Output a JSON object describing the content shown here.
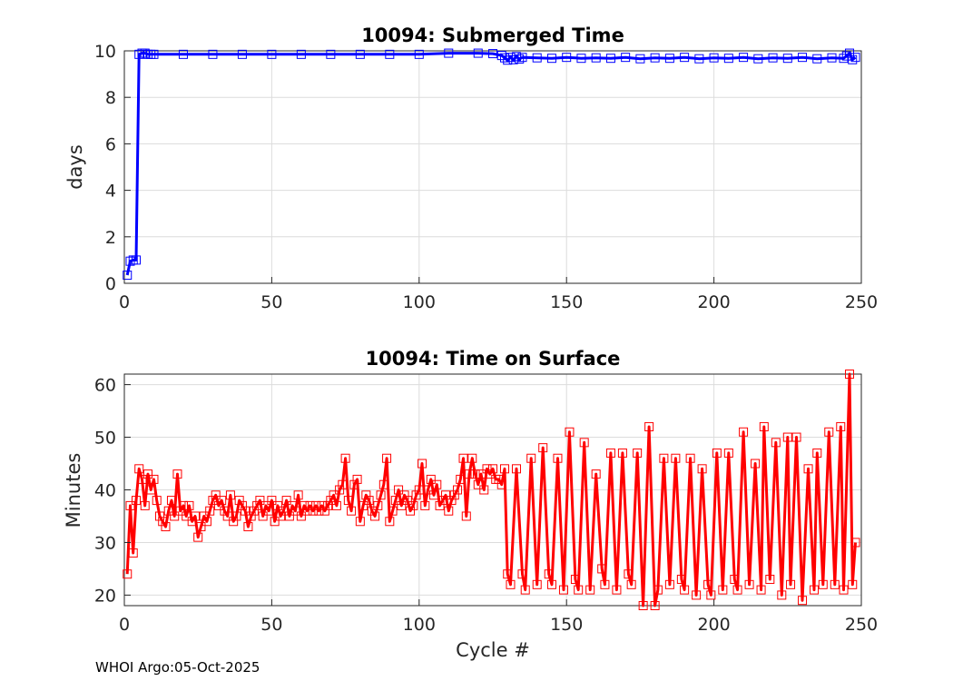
{
  "footer": "WHOI Argo:05-Oct-2025",
  "chart_data": [
    {
      "type": "line",
      "title": "10094: Submerged Time",
      "xlabel": "",
      "ylabel": "days",
      "xlim": [
        0,
        250
      ],
      "ylim": [
        0,
        10
      ],
      "xticks": [
        0,
        50,
        100,
        150,
        200,
        250
      ],
      "yticks": [
        0,
        2,
        4,
        6,
        8,
        10
      ],
      "grid": true,
      "color": "#0000ff",
      "marker": "square",
      "series": [
        {
          "name": "Submerged Time",
          "x": [
            1,
            2,
            3,
            4,
            5,
            6,
            7,
            8,
            9,
            10,
            20,
            30,
            40,
            50,
            60,
            70,
            80,
            90,
            100,
            110,
            120,
            125,
            128,
            129,
            130,
            131,
            132,
            133,
            134,
            135,
            140,
            145,
            150,
            155,
            160,
            165,
            170,
            175,
            180,
            185,
            190,
            195,
            200,
            205,
            210,
            215,
            220,
            225,
            230,
            235,
            240,
            244,
            245,
            246,
            247,
            248
          ],
          "y": [
            0.35,
            0.95,
            1.0,
            1.0,
            9.85,
            9.9,
            9.9,
            9.85,
            9.85,
            9.85,
            9.85,
            9.85,
            9.85,
            9.85,
            9.85,
            9.85,
            9.85,
            9.85,
            9.85,
            9.9,
            9.9,
            9.88,
            9.8,
            9.7,
            9.6,
            9.72,
            9.62,
            9.75,
            9.65,
            9.72,
            9.7,
            9.68,
            9.72,
            9.68,
            9.7,
            9.68,
            9.72,
            9.66,
            9.7,
            9.68,
            9.72,
            9.66,
            9.7,
            9.68,
            9.72,
            9.66,
            9.7,
            9.68,
            9.72,
            9.66,
            9.7,
            9.68,
            9.78,
            9.9,
            9.62,
            9.72
          ]
        }
      ]
    },
    {
      "type": "line",
      "title": "10094: Time on Surface",
      "xlabel": "Cycle #",
      "ylabel": "Minutes",
      "xlim": [
        0,
        250
      ],
      "ylim": [
        18,
        62
      ],
      "xticks": [
        0,
        50,
        100,
        150,
        200,
        250
      ],
      "yticks": [
        20,
        30,
        40,
        50,
        60
      ],
      "grid": true,
      "color": "#ff0000",
      "marker": "square",
      "series": [
        {
          "name": "Time on Surface",
          "x": [
            1,
            2,
            3,
            4,
            5,
            6,
            7,
            8,
            9,
            10,
            11,
            12,
            13,
            14,
            15,
            16,
            17,
            18,
            19,
            20,
            21,
            22,
            23,
            24,
            25,
            26,
            27,
            28,
            29,
            30,
            31,
            32,
            33,
            34,
            35,
            36,
            37,
            38,
            39,
            40,
            41,
            42,
            43,
            44,
            45,
            46,
            47,
            48,
            49,
            50,
            51,
            52,
            53,
            54,
            55,
            56,
            57,
            58,
            59,
            60,
            61,
            62,
            63,
            64,
            65,
            66,
            67,
            68,
            69,
            70,
            71,
            72,
            73,
            74,
            75,
            76,
            77,
            78,
            79,
            80,
            81,
            82,
            83,
            84,
            85,
            86,
            87,
            88,
            89,
            90,
            91,
            92,
            93,
            94,
            95,
            96,
            97,
            98,
            99,
            100,
            101,
            102,
            103,
            104,
            105,
            106,
            107,
            108,
            109,
            110,
            111,
            112,
            113,
            114,
            115,
            116,
            117,
            118,
            119,
            120,
            121,
            122,
            123,
            124,
            125,
            126,
            127,
            128,
            129,
            130,
            131,
            133,
            135,
            136,
            138,
            140,
            142,
            144,
            145,
            147,
            149,
            151,
            153,
            154,
            156,
            158,
            160,
            162,
            163,
            165,
            167,
            169,
            171,
            172,
            174,
            176,
            178,
            180,
            181,
            183,
            185,
            187,
            189,
            190,
            192,
            194,
            196,
            198,
            199,
            201,
            203,
            205,
            207,
            208,
            210,
            212,
            214,
            216,
            217,
            219,
            221,
            223,
            225,
            226,
            228,
            230,
            232,
            234,
            235,
            237,
            239,
            241,
            243,
            244,
            246,
            247,
            248
          ],
          "y": [
            24,
            37,
            28,
            38,
            44,
            42,
            37,
            43,
            40,
            42,
            38,
            35,
            34,
            33,
            36,
            38,
            35,
            43,
            36,
            37,
            35,
            37,
            34,
            35,
            31,
            33,
            35,
            34,
            36,
            38,
            39,
            37,
            38,
            36,
            35,
            39,
            34,
            35,
            38,
            37,
            36,
            33,
            35,
            36,
            37,
            38,
            35,
            37,
            36,
            38,
            34,
            37,
            35,
            36,
            38,
            35,
            37,
            36,
            39,
            35,
            37,
            36,
            37,
            36,
            37,
            36,
            37,
            36,
            37,
            38,
            39,
            37,
            40,
            41,
            46,
            38,
            36,
            41,
            42,
            34,
            37,
            39,
            38,
            36,
            35,
            37,
            39,
            41,
            46,
            34,
            36,
            38,
            40,
            37,
            39,
            38,
            36,
            37,
            39,
            40,
            45,
            37,
            40,
            42,
            39,
            41,
            37,
            38,
            39,
            36,
            38,
            39,
            40,
            42,
            46,
            35,
            43,
            46,
            43,
            41,
            43,
            40,
            44,
            43,
            44,
            42,
            42,
            41,
            44,
            24,
            22,
            44,
            24,
            21,
            46,
            22,
            48,
            24,
            22,
            46,
            21,
            51,
            23,
            21,
            49,
            21,
            43,
            25,
            22,
            47,
            21,
            47,
            24,
            22,
            47,
            18,
            52,
            18,
            21,
            46,
            22,
            46,
            23,
            21,
            46,
            20,
            44,
            22,
            20,
            47,
            21,
            47,
            23,
            21,
            51,
            22,
            45,
            21,
            52,
            23,
            49,
            20,
            50,
            22,
            50,
            19,
            44,
            21,
            47,
            22,
            51,
            22,
            52,
            21,
            62,
            22,
            30
          ]
        }
      ]
    }
  ]
}
